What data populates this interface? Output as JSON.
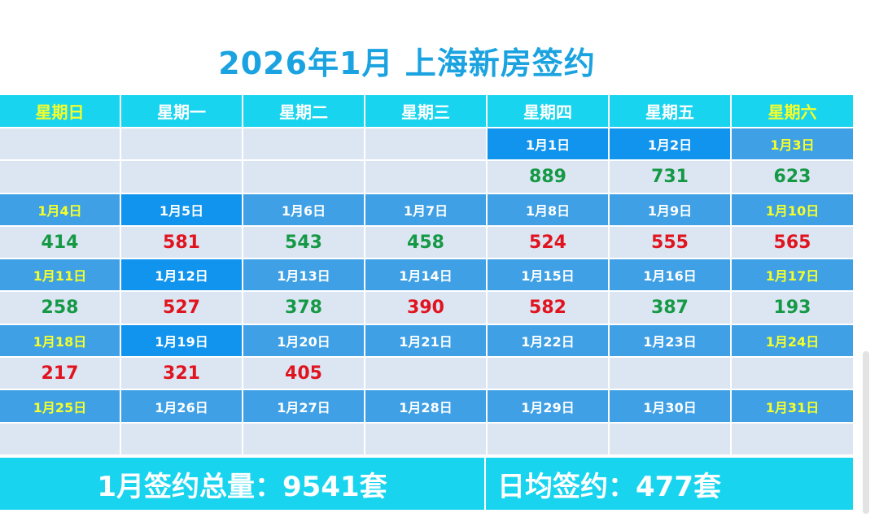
{
  "title": "2026年1月 上海新房签约",
  "weekdays": [
    "星期日",
    "星期一",
    "星期二",
    "星期三",
    "星期四",
    "星期五",
    "星期六"
  ],
  "rows": [
    [
      {
        "type": "empty"
      },
      {
        "type": "empty"
      },
      {
        "type": "empty"
      },
      {
        "type": "empty"
      },
      {
        "type": "date",
        "text": "1月1日",
        "bright": true
      },
      {
        "type": "date",
        "text": "1月2日",
        "bright": true
      },
      {
        "type": "date",
        "text": "1月3日",
        "weekend": true
      }
    ],
    [
      {
        "type": "empty"
      },
      {
        "type": "empty"
      },
      {
        "type": "empty"
      },
      {
        "type": "empty"
      },
      {
        "type": "val",
        "text": "889",
        "color": "g"
      },
      {
        "type": "val",
        "text": "731",
        "color": "g"
      },
      {
        "type": "val",
        "text": "623",
        "color": "g"
      }
    ],
    [
      {
        "type": "date",
        "text": "1月4日",
        "weekend": true
      },
      {
        "type": "date",
        "text": "1月5日",
        "bright": true
      },
      {
        "type": "date",
        "text": "1月6日"
      },
      {
        "type": "date",
        "text": "1月7日"
      },
      {
        "type": "date",
        "text": "1月8日"
      },
      {
        "type": "date",
        "text": "1月9日"
      },
      {
        "type": "date",
        "text": "1月10日",
        "weekend": true
      }
    ],
    [
      {
        "type": "val",
        "text": "414",
        "color": "g"
      },
      {
        "type": "val",
        "text": "581",
        "color": "r"
      },
      {
        "type": "val",
        "text": "543",
        "color": "g"
      },
      {
        "type": "val",
        "text": "458",
        "color": "g"
      },
      {
        "type": "val",
        "text": "524",
        "color": "r"
      },
      {
        "type": "val",
        "text": "555",
        "color": "r"
      },
      {
        "type": "val",
        "text": "565",
        "color": "r"
      }
    ],
    [
      {
        "type": "date",
        "text": "1月11日",
        "weekend": true
      },
      {
        "type": "date",
        "text": "1月12日",
        "bright": true
      },
      {
        "type": "date",
        "text": "1月13日"
      },
      {
        "type": "date",
        "text": "1月14日"
      },
      {
        "type": "date",
        "text": "1月15日"
      },
      {
        "type": "date",
        "text": "1月16日"
      },
      {
        "type": "date",
        "text": "1月17日",
        "weekend": true
      }
    ],
    [
      {
        "type": "val",
        "text": "258",
        "color": "g"
      },
      {
        "type": "val",
        "text": "527",
        "color": "r"
      },
      {
        "type": "val",
        "text": "378",
        "color": "g"
      },
      {
        "type": "val",
        "text": "390",
        "color": "r"
      },
      {
        "type": "val",
        "text": "582",
        "color": "r"
      },
      {
        "type": "val",
        "text": "387",
        "color": "g"
      },
      {
        "type": "val",
        "text": "193",
        "color": "g"
      }
    ],
    [
      {
        "type": "date",
        "text": "1月18日",
        "weekend": true
      },
      {
        "type": "date",
        "text": "1月19日",
        "bright": true
      },
      {
        "type": "date",
        "text": "1月20日"
      },
      {
        "type": "date",
        "text": "1月21日"
      },
      {
        "type": "date",
        "text": "1月22日"
      },
      {
        "type": "date",
        "text": "1月23日"
      },
      {
        "type": "date",
        "text": "1月24日",
        "weekend": true
      }
    ],
    [
      {
        "type": "val",
        "text": "217",
        "color": "r"
      },
      {
        "type": "val",
        "text": "321",
        "color": "r"
      },
      {
        "type": "val",
        "text": "405",
        "color": "r"
      },
      {
        "type": "empty"
      },
      {
        "type": "empty"
      },
      {
        "type": "empty"
      },
      {
        "type": "empty"
      }
    ],
    [
      {
        "type": "date",
        "text": "1月25日",
        "weekend": true
      },
      {
        "type": "date",
        "text": "1月26日"
      },
      {
        "type": "date",
        "text": "1月27日"
      },
      {
        "type": "date",
        "text": "1月28日"
      },
      {
        "type": "date",
        "text": "1月29日"
      },
      {
        "type": "date",
        "text": "1月30日"
      },
      {
        "type": "date",
        "text": "1月31日",
        "weekend": true
      }
    ],
    [
      {
        "type": "empty"
      },
      {
        "type": "empty"
      },
      {
        "type": "empty"
      },
      {
        "type": "empty"
      },
      {
        "type": "empty"
      },
      {
        "type": "empty"
      },
      {
        "type": "empty"
      }
    ]
  ],
  "footer": {
    "total_label": "1月签约总量：9541套",
    "avg_label": "日均签约：477套"
  },
  "colors": {
    "title": "#1aa3e0",
    "header_bg": "#18d4ee",
    "date_bg": "#3fa0e6",
    "date_bright_bg": "#1094ee",
    "value_bg": "#dce6f3",
    "weekend_text": "#f4ff2a",
    "value_up": "#159945",
    "value_down": "#e0141f"
  }
}
